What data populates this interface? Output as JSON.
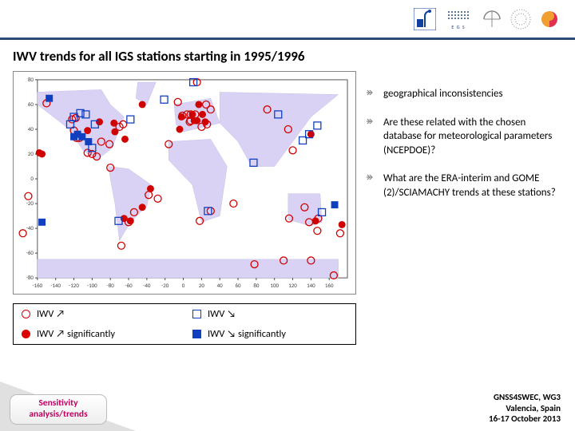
{
  "title": "IWV trends for all IGS stations starting in 1995/1996",
  "bullets": [
    "geographical inconsistencies",
    "Are these related with the chosen database for meteorological parameters (NCEPDOE)?",
    "What are the ERA-interim and GOME (2)/SCIAMACHY trends at these stations?"
  ],
  "legend": {
    "r1": {
      "a": "IWV ↗",
      "b": "IWV ↘"
    },
    "r2": {
      "a": "IWV ↗ significantly",
      "b": "IWV ↘ significantly"
    }
  },
  "map": {
    "xlim": [
      -160,
      180
    ],
    "ylim": [
      -80,
      80
    ],
    "xticks": [
      -160,
      -140,
      -120,
      -100,
      -80,
      -60,
      -40,
      -20,
      0,
      20,
      40,
      60,
      80,
      100,
      120,
      140,
      160
    ],
    "ytick_step": 20,
    "axis_color": "#555",
    "tick_color": "#444",
    "tick_fontsize": 7,
    "land_fill": "#d9d2f4",
    "land_stroke": "#c8bfe8",
    "marker_size": 4.5,
    "colors": {
      "red": "#d00000",
      "blue": "#1040c0"
    },
    "points": {
      "red_filled": [
        [
          -155,
          20
        ],
        [
          -105,
          39
        ],
        [
          -92,
          46
        ],
        [
          -76,
          45
        ],
        [
          -75,
          38
        ],
        [
          -65,
          -32
        ],
        [
          -36,
          -8
        ],
        [
          -4,
          40
        ],
        [
          12,
          47
        ],
        [
          15,
          47
        ],
        [
          17,
          60
        ],
        [
          21,
          52
        ],
        [
          24,
          46
        ],
        [
          140,
          36
        ],
        [
          -158,
          21
        ],
        [
          145,
          -34
        ],
        [
          174,
          -37
        ],
        [
          -64,
          32
        ],
        [
          -58,
          -34
        ],
        [
          -45,
          -23
        ],
        [
          -45,
          60
        ],
        [
          -2,
          50
        ],
        [
          10,
          52
        ]
      ],
      "red_open": [
        [
          -122,
          48
        ],
        [
          -120,
          39
        ],
        [
          -117,
          33
        ],
        [
          -118,
          49
        ],
        [
          -114,
          33
        ],
        [
          -105,
          21
        ],
        [
          -100,
          20
        ],
        [
          -95,
          18
        ],
        [
          -90,
          30
        ],
        [
          -81,
          28
        ],
        [
          -80,
          9
        ],
        [
          -70,
          42
        ],
        [
          -66,
          44
        ],
        [
          -68,
          -54
        ],
        [
          -60,
          -35
        ],
        [
          -54,
          -27
        ],
        [
          -38,
          -13
        ],
        [
          -28,
          -16
        ],
        [
          -16,
          28
        ],
        [
          -6,
          62
        ],
        [
          -1,
          51
        ],
        [
          4,
          52
        ],
        [
          7,
          46
        ],
        [
          8,
          47
        ],
        [
          8,
          52
        ],
        [
          13,
          52
        ],
        [
          15,
          78
        ],
        [
          18,
          -34
        ],
        [
          20,
          42
        ],
        [
          25,
          60
        ],
        [
          26,
          44
        ],
        [
          30,
          -26
        ],
        [
          30,
          56
        ],
        [
          55,
          -20
        ],
        [
          78,
          -69
        ],
        [
          92,
          56
        ],
        [
          110,
          -66
        ],
        [
          116,
          -32
        ],
        [
          133,
          -23
        ],
        [
          138,
          -35
        ],
        [
          148,
          -32
        ],
        [
          147,
          -42
        ],
        [
          115,
          40
        ],
        [
          120,
          23
        ],
        [
          140,
          -66
        ],
        [
          165,
          -78
        ],
        [
          -170,
          -14
        ],
        [
          -150,
          61
        ],
        [
          172,
          -44
        ],
        [
          -176,
          -44
        ]
      ],
      "blue_filled": [
        [
          -120,
          34
        ],
        [
          -116,
          36
        ],
        [
          -111,
          34
        ],
        [
          -104,
          30
        ],
        [
          -147,
          65
        ],
        [
          -155,
          -35
        ],
        [
          166,
          -21
        ]
      ],
      "blue_open": [
        [
          -124,
          44
        ],
        [
          -120,
          50
        ],
        [
          -113,
          53
        ],
        [
          -107,
          52
        ],
        [
          -100,
          25
        ],
        [
          -97,
          44
        ],
        [
          -71,
          -34
        ],
        [
          -58,
          48
        ],
        [
          -21,
          64
        ],
        [
          11,
          78
        ],
        [
          77,
          13
        ],
        [
          104,
          52
        ],
        [
          131,
          31
        ],
        [
          138,
          36
        ],
        [
          147,
          43
        ],
        [
          152,
          -27
        ],
        [
          27,
          -26
        ]
      ]
    }
  },
  "pill": {
    "l1": "Sensitivity",
    "l2": "analysis/trends"
  },
  "footer": {
    "l1": "GNSS4SWEC, WG3",
    "l2": "Valencia, Spain",
    "l3": "16-17 October 2013"
  },
  "egs_label": "E G S"
}
